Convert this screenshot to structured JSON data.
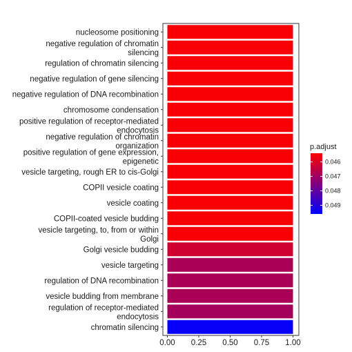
{
  "chart_data": {
    "type": "bar",
    "orientation": "horizontal",
    "categories": [
      "nucleosome positioning",
      "negative regulation of chromatin silencing",
      "regulation of chromatin silencing",
      "negative regulation of gene silencing",
      "negative regulation of DNA recombination",
      "chromosome condensation",
      "positive regulation of receptor-mediated endocytosis",
      "negative regulation of chromatin organization",
      "positive regulation of gene expression, epigenetic",
      "vesicle targeting, rough ER to cis-Golgi",
      "COPII vesicle coating",
      "vesicle coating",
      "COPII-coated vesicle budding",
      "vesicle targeting, to, from or within Golgi",
      "Golgi vesicle budding",
      "vesicle targeting",
      "regulation of DNA recombination",
      "vesicle budding from membrane",
      "regulation of receptor-mediated endocytosis",
      "chromatin silencing"
    ],
    "label_lines": [
      [
        "nucleosome positioning"
      ],
      [
        "negative regulation of chromatin",
        "silencing"
      ],
      [
        "regulation of chromatin silencing"
      ],
      [
        "negative regulation of gene silencing"
      ],
      [
        "negative regulation of DNA recombination"
      ],
      [
        "chromosome condensation"
      ],
      [
        "positive regulation of receptor-mediated",
        "endocytosis"
      ],
      [
        "negative regulation of chromatin",
        "organization"
      ],
      [
        "positive regulation of gene expression,",
        "epigenetic"
      ],
      [
        "vesicle targeting, rough ER to cis-Golgi"
      ],
      [
        "COPII vesicle coating"
      ],
      [
        "vesicle coating"
      ],
      [
        "COPII-coated vesicle budding"
      ],
      [
        "vesicle targeting, to, from or within",
        "Golgi"
      ],
      [
        "Golgi vesicle budding"
      ],
      [
        "vesicle targeting"
      ],
      [
        "regulation of DNA recombination"
      ],
      [
        "vesicle budding from membrane"
      ],
      [
        "regulation of receptor-mediated",
        "endocytosis"
      ],
      [
        "chromatin silencing"
      ]
    ],
    "values": [
      1,
      1,
      1,
      1,
      1,
      1,
      1,
      1,
      1,
      1,
      1,
      1,
      1,
      1,
      1,
      1,
      1,
      1,
      1,
      1
    ],
    "p_adjust": [
      0.0455,
      0.0455,
      0.0455,
      0.0455,
      0.0455,
      0.0455,
      0.0455,
      0.0455,
      0.0455,
      0.0455,
      0.0455,
      0.0455,
      0.0455,
      0.0455,
      0.0462,
      0.0468,
      0.0468,
      0.0468,
      0.0469,
      0.0495
    ],
    "xlim": [
      0,
      1
    ],
    "xticks": [
      "0.00",
      "0.25",
      "0.50",
      "0.75",
      "1.00"
    ],
    "xtick_values": [
      0,
      0.25,
      0.5,
      0.75,
      1.0
    ],
    "legend": {
      "title": "p.adjust",
      "labels": [
        "0.046",
        "0.047",
        "0.048",
        "0.049"
      ],
      "label_values": [
        0.046,
        0.047,
        0.048,
        0.049
      ],
      "range": [
        0.0454,
        0.0496
      ],
      "color_low": "#ff0000",
      "color_high": "#0000ff",
      "placement": "right"
    },
    "title": "",
    "xlabel": "",
    "ylabel": ""
  }
}
